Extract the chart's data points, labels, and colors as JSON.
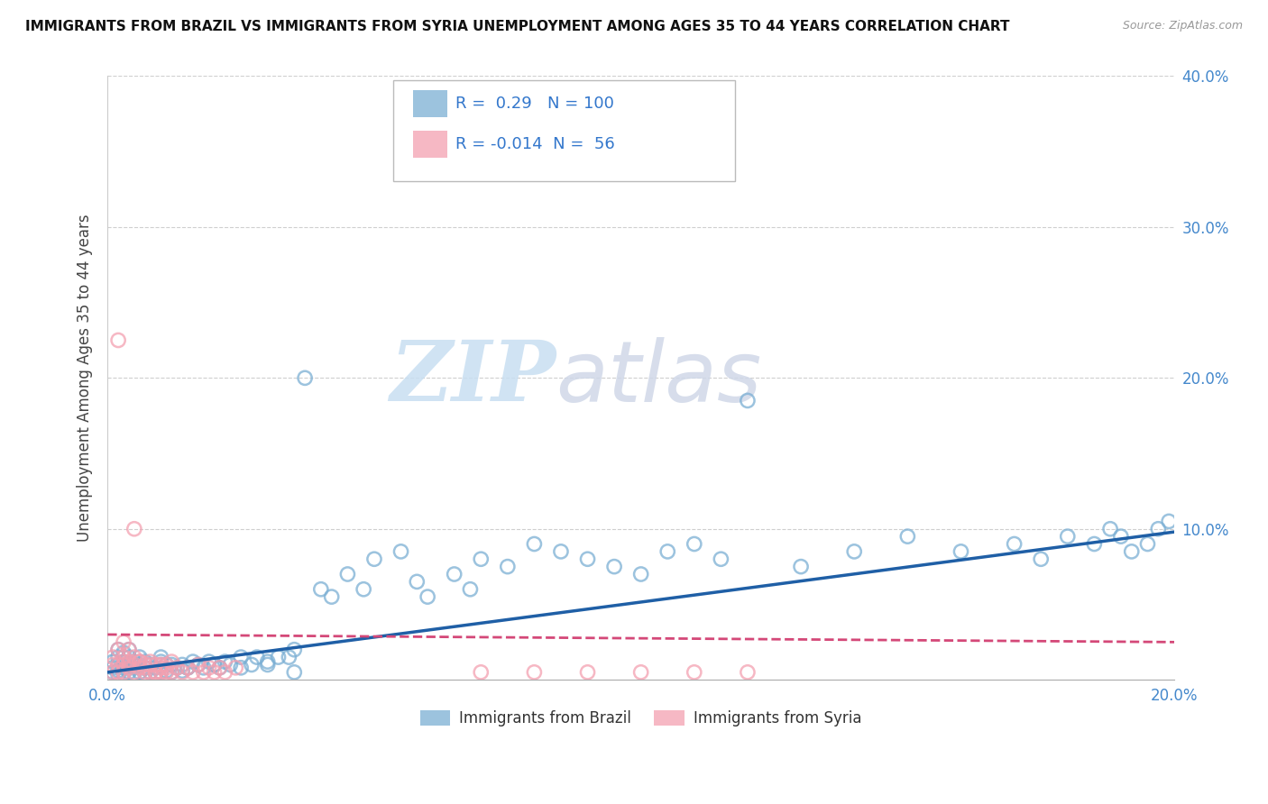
{
  "title": "IMMIGRANTS FROM BRAZIL VS IMMIGRANTS FROM SYRIA UNEMPLOYMENT AMONG AGES 35 TO 44 YEARS CORRELATION CHART",
  "source": "Source: ZipAtlas.com",
  "ylabel": "Unemployment Among Ages 35 to 44 years",
  "xlim": [
    0.0,
    0.2
  ],
  "ylim": [
    0.0,
    0.4
  ],
  "xticks": [
    0.0,
    0.05,
    0.1,
    0.15,
    0.2
  ],
  "yticks": [
    0.0,
    0.1,
    0.2,
    0.3,
    0.4
  ],
  "xtick_labels_edge": [
    "0.0%",
    "",
    "",
    "",
    "20.0%"
  ],
  "ytick_labels_right": [
    "",
    "10.0%",
    "20.0%",
    "30.0%",
    "40.0%"
  ],
  "brazil_R": 0.29,
  "brazil_N": 100,
  "syria_R": -0.014,
  "syria_N": 56,
  "brazil_color": "#7BAFD4",
  "syria_color": "#F4A0B0",
  "brazil_line_color": "#1F5FA6",
  "syria_line_color": "#D44878",
  "watermark_zip": "ZIP",
  "watermark_atlas": "atlas",
  "background_color": "#FFFFFF",
  "grid_color": "#BBBBBB",
  "brazil_x": [
    0.001,
    0.001,
    0.001,
    0.002,
    0.002,
    0.002,
    0.002,
    0.002,
    0.003,
    0.003,
    0.003,
    0.003,
    0.004,
    0.004,
    0.004,
    0.005,
    0.005,
    0.005,
    0.006,
    0.006,
    0.006,
    0.007,
    0.007,
    0.007,
    0.008,
    0.008,
    0.009,
    0.009,
    0.01,
    0.01,
    0.01,
    0.011,
    0.011,
    0.012,
    0.012,
    0.013,
    0.014,
    0.014,
    0.015,
    0.016,
    0.017,
    0.018,
    0.019,
    0.02,
    0.021,
    0.022,
    0.023,
    0.025,
    0.027,
    0.028,
    0.03,
    0.032,
    0.034,
    0.035,
    0.037,
    0.04,
    0.042,
    0.045,
    0.048,
    0.05,
    0.055,
    0.058,
    0.06,
    0.065,
    0.068,
    0.07,
    0.075,
    0.08,
    0.085,
    0.09,
    0.095,
    0.1,
    0.105,
    0.11,
    0.115,
    0.12,
    0.13,
    0.14,
    0.15,
    0.16,
    0.17,
    0.175,
    0.18,
    0.185,
    0.188,
    0.19,
    0.192,
    0.195,
    0.197,
    0.199,
    0.003,
    0.004,
    0.005,
    0.007,
    0.01,
    0.015,
    0.02,
    0.025,
    0.03,
    0.035
  ],
  "brazil_y": [
    0.005,
    0.008,
    0.012,
    0.003,
    0.006,
    0.01,
    0.015,
    0.02,
    0.004,
    0.008,
    0.012,
    0.018,
    0.005,
    0.01,
    0.015,
    0.004,
    0.008,
    0.012,
    0.005,
    0.01,
    0.015,
    0.004,
    0.008,
    0.012,
    0.005,
    0.01,
    0.004,
    0.008,
    0.005,
    0.01,
    0.015,
    0.006,
    0.01,
    0.005,
    0.01,
    0.008,
    0.006,
    0.01,
    0.008,
    0.012,
    0.01,
    0.008,
    0.012,
    0.01,
    0.008,
    0.012,
    0.01,
    0.015,
    0.01,
    0.015,
    0.012,
    0.015,
    0.015,
    0.02,
    0.2,
    0.06,
    0.055,
    0.07,
    0.06,
    0.08,
    0.085,
    0.065,
    0.055,
    0.07,
    0.06,
    0.08,
    0.075,
    0.09,
    0.085,
    0.08,
    0.075,
    0.07,
    0.085,
    0.09,
    0.08,
    0.185,
    0.075,
    0.085,
    0.095,
    0.085,
    0.09,
    0.08,
    0.095,
    0.09,
    0.1,
    0.095,
    0.085,
    0.09,
    0.1,
    0.105,
    0.015,
    0.02,
    0.01,
    0.008,
    0.012,
    0.008,
    0.01,
    0.008,
    0.01,
    0.005
  ],
  "syria_x": [
    0.001,
    0.001,
    0.001,
    0.002,
    0.002,
    0.002,
    0.003,
    0.003,
    0.003,
    0.004,
    0.004,
    0.004,
    0.005,
    0.005,
    0.005,
    0.006,
    0.006,
    0.007,
    0.007,
    0.008,
    0.008,
    0.009,
    0.009,
    0.01,
    0.01,
    0.011,
    0.011,
    0.012,
    0.012,
    0.013,
    0.014,
    0.015,
    0.016,
    0.017,
    0.018,
    0.019,
    0.02,
    0.021,
    0.022,
    0.024,
    0.002,
    0.003,
    0.004,
    0.005,
    0.006,
    0.007,
    0.008,
    0.009,
    0.01,
    0.011,
    0.07,
    0.08,
    0.09,
    0.1,
    0.11,
    0.12
  ],
  "syria_y": [
    0.005,
    0.01,
    0.015,
    0.005,
    0.01,
    0.02,
    0.005,
    0.01,
    0.015,
    0.008,
    0.012,
    0.02,
    0.005,
    0.01,
    0.015,
    0.008,
    0.012,
    0.005,
    0.01,
    0.005,
    0.012,
    0.005,
    0.01,
    0.005,
    0.01,
    0.005,
    0.01,
    0.005,
    0.012,
    0.008,
    0.005,
    0.008,
    0.005,
    0.01,
    0.005,
    0.008,
    0.005,
    0.008,
    0.005,
    0.008,
    0.225,
    0.025,
    0.01,
    0.1,
    0.012,
    0.008,
    0.01,
    0.005,
    0.008,
    0.008,
    0.005,
    0.005,
    0.005,
    0.005,
    0.005,
    0.005
  ],
  "legend_label_brazil": "Immigrants from Brazil",
  "legend_label_syria": "Immigrants from Syria"
}
